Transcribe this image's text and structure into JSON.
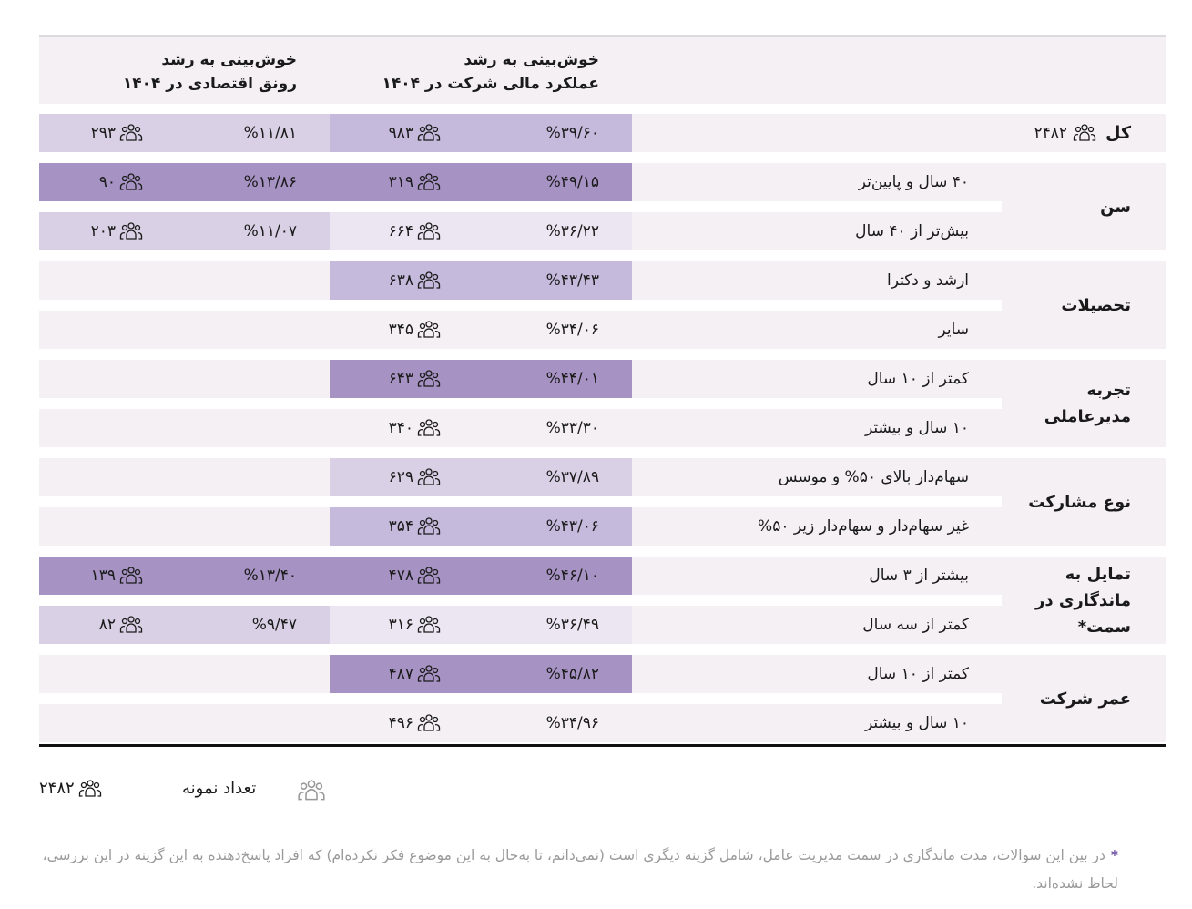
{
  "header": {
    "col_company": "خوش‌بینی به رشد عملکرد مالی شرکت در ۱۴۰۴",
    "col_company_line1": "خوش‌بینی به رشد",
    "col_company_line2": "عملکرد مالی شرکت در ۱۴۰۴",
    "col_economy_line1": "خوش‌بینی به رشد",
    "col_economy_line2": "رونق اقتصادی در ۱۴۰۴"
  },
  "total": {
    "label": "کل",
    "count": "۲۴۸۲",
    "company_pct": "%۳۹/۶۰",
    "company_count": "۹۸۳",
    "economy_pct": "%۱۱/۸۱",
    "economy_count": "۲۹۳"
  },
  "groups": [
    {
      "label": "سن",
      "rows": [
        {
          "label": "۴۰ سال و پایین‌تر",
          "company_pct": "%۴۹/۱۵",
          "company_count": "۳۱۹",
          "economy_pct": "%۱۳/۸۶",
          "economy_count": "۹۰"
        },
        {
          "label": "بیش‌تر از ۴۰ سال",
          "company_pct": "%۳۶/۲۲",
          "company_count": "۶۶۴",
          "economy_pct": "%۱۱/۰۷",
          "economy_count": "۲۰۳"
        }
      ]
    },
    {
      "label": "تحصیلات",
      "rows": [
        {
          "label": "ارشد و دکترا",
          "company_pct": "%۴۳/۴۳",
          "company_count": "۶۳۸"
        },
        {
          "label": "سایر",
          "company_pct": "%۳۴/۰۶",
          "company_count": "۳۴۵"
        }
      ]
    },
    {
      "label": "تجربه مدیرعاملی",
      "rows": [
        {
          "label": "کمتر از ۱۰ سال",
          "company_pct": "%۴۴/۰۱",
          "company_count": "۶۴۳"
        },
        {
          "label": "۱۰ سال و بیشتر",
          "company_pct": "%۳۳/۳۰",
          "company_count": "۳۴۰"
        }
      ]
    },
    {
      "label": "نوع مشارکت",
      "rows": [
        {
          "label": "سهام‌دار بالای ۵۰% و موسس",
          "company_pct": "%۳۷/۸۹",
          "company_count": "۶۲۹"
        },
        {
          "label": "غیر سهام‌دار و سهام‌دار زیر ۵۰%",
          "company_pct": "%۴۳/۰۶",
          "company_count": "۳۵۴"
        }
      ]
    },
    {
      "label": "تمایل به ماندگاری در سمت*",
      "rows": [
        {
          "label": "بیشتر از ۳ سال",
          "company_pct": "%۴۶/۱۰",
          "company_count": "۴۷۸",
          "economy_pct": "%۱۳/۴۰",
          "economy_count": "۱۳۹"
        },
        {
          "label": "کمتر از سه سال",
          "company_pct": "%۳۶/۴۹",
          "company_count": "۳۱۶",
          "economy_pct": "%۹/۴۷",
          "economy_count": "۸۲"
        }
      ]
    },
    {
      "label": "عمر شرکت",
      "rows": [
        {
          "label": "کمتر از ۱۰ سال",
          "company_pct": "%۴۵/۸۲",
          "company_count": "۴۸۷"
        },
        {
          "label": "۱۰ سال و بیشتر",
          "company_pct": "%۳۴/۹۶",
          "company_count": "۴۹۶"
        }
      ]
    }
  ],
  "legend": {
    "label": "تعداد نمونه",
    "icon": "people-icon",
    "total": "۲۴۸۲"
  },
  "footnote": {
    "star": "*",
    "text": "در بین این سوالات، مدت ماندگاری در سمت مدیریت عامل، شامل گزینه دیگری است (نمی‌دانم، تا به‌حال به این موضوع فکر نکرده‌ام) که افراد پاسخ‌دهنده به این گزینه در این بررسی، لحاظ نشده‌اند."
  },
  "colors": {
    "row_bg": "#f4f0f4",
    "very_light": "#ebe6f2",
    "light": "#d9d0e5",
    "mid": "#c5b9dc",
    "dark": "#a693c4",
    "star": "#6b4fa0"
  },
  "chart_data": {
    "type": "table",
    "title": "",
    "columns": [
      "Group",
      "Subgroup",
      "Optimism company financial growth 1404 (%)",
      "Count",
      "Optimism economic prosperity 1404 (%)",
      "Count"
    ],
    "rows": [
      [
        "کل",
        "",
        39.6,
        983,
        11.81,
        293
      ],
      [
        "سن",
        "۴۰ سال و پایین‌تر",
        49.15,
        319,
        13.86,
        90
      ],
      [
        "سن",
        "بیش‌تر از ۴۰ سال",
        36.22,
        664,
        11.07,
        203
      ],
      [
        "تحصیلات",
        "ارشد و دکترا",
        43.43,
        638,
        null,
        null
      ],
      [
        "تحصیلات",
        "سایر",
        34.06,
        345,
        null,
        null
      ],
      [
        "تجربه مدیرعاملی",
        "کمتر از ۱۰ سال",
        44.01,
        643,
        null,
        null
      ],
      [
        "تجربه مدیرعاملی",
        "۱۰ سال و بیشتر",
        33.3,
        340,
        null,
        null
      ],
      [
        "نوع مشارکت",
        "سهام‌دار بالای ۵۰% و موسس",
        37.89,
        629,
        null,
        null
      ],
      [
        "نوع مشارکت",
        "غیر سهام‌دار و سهام‌دار زیر ۵۰%",
        43.06,
        354,
        null,
        null
      ],
      [
        "تمایل به ماندگاری در سمت",
        "بیشتر از ۳ سال",
        46.1,
        478,
        13.4,
        139
      ],
      [
        "تمایل به ماندگاری در سمت",
        "کمتر از سه سال",
        36.49,
        316,
        9.47,
        82
      ],
      [
        "عمر شرکت",
        "کمتر از ۱۰ سال",
        45.82,
        487,
        null,
        null
      ],
      [
        "عمر شرکت",
        "۱۰ سال و بیشتر",
        34.96,
        496,
        null,
        null
      ]
    ],
    "sample_total": 2482
  }
}
